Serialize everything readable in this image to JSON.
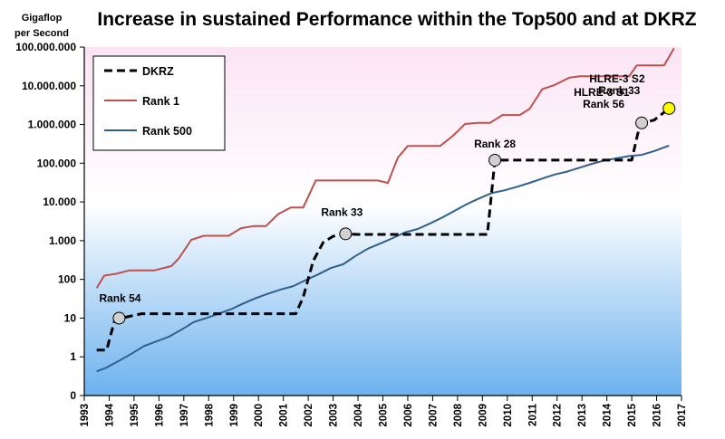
{
  "chart_data": {
    "type": "line",
    "title": "Increase in sustained Performance within the Top500 and at DKRZ",
    "ylabel_line1": "Gigaflop",
    "ylabel_line2": "per Second",
    "y_scale": "log10",
    "y_tick_labels": [
      "0",
      "1",
      "10",
      "100",
      "1.000",
      "10.000",
      "100.000",
      "1.000.000",
      "10.000.000",
      "100.000.000"
    ],
    "x_tick_labels": [
      "1993",
      "1994",
      "1995",
      "1996",
      "1997",
      "1998",
      "1999",
      "2000",
      "2001",
      "2002",
      "2003",
      "2004",
      "2005",
      "2006",
      "2007",
      "2008",
      "2009",
      "2010",
      "2011",
      "2012",
      "2013",
      "2014",
      "2015",
      "2016",
      "2017"
    ],
    "xlim": [
      1993,
      2017
    ],
    "ylim_log10": [
      -1,
      8
    ],
    "colors": {
      "rank1": "#c0504d",
      "rank500": "#2e5f8f",
      "dkrz": "#000000",
      "marker": "#d0d0d0",
      "marker_highlight": "#ffff00",
      "bg_top": "#fbe4f4",
      "bg_bottom": "#6cb1ee"
    },
    "legend": [
      {
        "key": "dkrz",
        "label": "DKRZ"
      },
      {
        "key": "rank1",
        "label": "Rank 1"
      },
      {
        "key": "rank500",
        "label": "Rank 500"
      }
    ],
    "series": [
      {
        "key": "rank1",
        "name": "Rank 1",
        "style": "solid",
        "points": [
          [
            1993.5,
            60
          ],
          [
            1993.8,
            125
          ],
          [
            1994.3,
            140
          ],
          [
            1994.8,
            170
          ],
          [
            1995.8,
            170
          ],
          [
            1996.5,
            220
          ],
          [
            1996.8,
            350
          ],
          [
            1997.3,
            1050
          ],
          [
            1997.8,
            1340
          ],
          [
            1998.8,
            1340
          ],
          [
            1999.3,
            2100
          ],
          [
            1999.8,
            2380
          ],
          [
            2000.3,
            2380
          ],
          [
            2000.8,
            4900
          ],
          [
            2001.3,
            7200
          ],
          [
            2001.8,
            7200
          ],
          [
            2002.3,
            35900
          ],
          [
            2003.8,
            35900
          ],
          [
            2004.8,
            35900
          ],
          [
            2005.2,
            31000
          ],
          [
            2005.6,
            140000
          ],
          [
            2006.0,
            280600
          ],
          [
            2007.3,
            280600
          ],
          [
            2007.8,
            500000
          ],
          [
            2008.3,
            1030000
          ],
          [
            2008.8,
            1100000
          ],
          [
            2009.3,
            1100000
          ],
          [
            2009.8,
            1760000
          ],
          [
            2010.5,
            1760000
          ],
          [
            2010.9,
            2560000
          ],
          [
            2011.4,
            8160000
          ],
          [
            2011.9,
            10510000
          ],
          [
            2012.5,
            16300000
          ],
          [
            2012.9,
            17600000
          ],
          [
            2013.5,
            17600000
          ],
          [
            2014.5,
            17600000
          ],
          [
            2014.9,
            17600000
          ],
          [
            2015.2,
            33800000
          ],
          [
            2016.3,
            33800000
          ],
          [
            2016.7,
            93000000
          ]
        ]
      },
      {
        "key": "rank500",
        "name": "Rank 500",
        "style": "solid",
        "points": [
          [
            1993.5,
            0.42
          ],
          [
            1993.9,
            0.53
          ],
          [
            1994.4,
            0.79
          ],
          [
            1994.9,
            1.2
          ],
          [
            1995.4,
            1.9
          ],
          [
            1995.9,
            2.5
          ],
          [
            1996.4,
            3.3
          ],
          [
            1996.9,
            5.0
          ],
          [
            1997.4,
            7.9
          ],
          [
            1997.9,
            10
          ],
          [
            1998.4,
            13
          ],
          [
            1998.9,
            17
          ],
          [
            1999.4,
            24
          ],
          [
            1999.9,
            33
          ],
          [
            2000.4,
            43
          ],
          [
            2000.9,
            55
          ],
          [
            2001.4,
            67
          ],
          [
            2001.9,
            96
          ],
          [
            2002.4,
            134
          ],
          [
            2002.9,
            196
          ],
          [
            2003.4,
            245
          ],
          [
            2003.9,
            403
          ],
          [
            2004.4,
            624
          ],
          [
            2004.9,
            850
          ],
          [
            2005.4,
            1170
          ],
          [
            2005.9,
            1650
          ],
          [
            2006.4,
            2000
          ],
          [
            2006.9,
            2800
          ],
          [
            2007.4,
            4000
          ],
          [
            2007.9,
            6000
          ],
          [
            2008.4,
            9000
          ],
          [
            2008.9,
            12600
          ],
          [
            2009.4,
            17100
          ],
          [
            2009.9,
            20000
          ],
          [
            2010.4,
            24700
          ],
          [
            2010.9,
            31100
          ],
          [
            2011.4,
            40100
          ],
          [
            2011.9,
            51000
          ],
          [
            2012.4,
            60800
          ],
          [
            2012.9,
            76500
          ],
          [
            2013.4,
            96600
          ],
          [
            2013.9,
            118000
          ],
          [
            2014.4,
            134000
          ],
          [
            2014.9,
            153000
          ],
          [
            2015.4,
            164000
          ],
          [
            2015.9,
            206000
          ],
          [
            2016.5,
            286000
          ]
        ]
      },
      {
        "key": "dkrz",
        "name": "DKRZ",
        "style": "dashed",
        "points": [
          [
            1993.5,
            1.5
          ],
          [
            1993.9,
            1.5
          ],
          [
            1994.2,
            8.0
          ],
          [
            1994.5,
            10
          ],
          [
            1995.3,
            13
          ],
          [
            2001.5,
            13
          ],
          [
            2001.8,
            35
          ],
          [
            2002.2,
            300
          ],
          [
            2002.6,
            900
          ],
          [
            2003.0,
            1300
          ],
          [
            2003.5,
            1500
          ],
          [
            2004.0,
            1450
          ],
          [
            2009.0,
            1450
          ],
          [
            2009.2,
            1450
          ],
          [
            2009.5,
            120000
          ],
          [
            2010.0,
            120000
          ],
          [
            2015.0,
            120000
          ],
          [
            2015.25,
            600000
          ],
          [
            2015.45,
            1100000
          ],
          [
            2015.9,
            1300000
          ],
          [
            2016.5,
            2600000
          ]
        ]
      }
    ],
    "annotations": [
      {
        "text": "Rank 54",
        "point": [
          1994.4,
          10
        ],
        "highlight": false
      },
      {
        "text": "Rank 33",
        "point": [
          2003.5,
          1500
        ],
        "highlight": false
      },
      {
        "text": "Rank 28",
        "point": [
          2009.5,
          120000
        ],
        "highlight": false
      },
      {
        "text": "HLRE-3  S1",
        "text2": "Rank 56",
        "point": [
          2015.4,
          1100000
        ],
        "highlight": false
      },
      {
        "text": "HLRE-3  S2",
        "text2": "Rank 33",
        "point": [
          2016.5,
          2600000
        ],
        "highlight": true
      }
    ]
  }
}
